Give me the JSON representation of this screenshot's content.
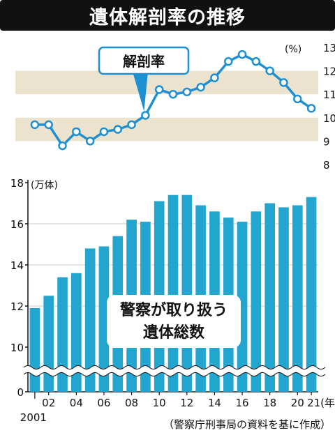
{
  "title": "遺体解剖率の推移",
  "source": "（警察庁刑事局の資料を基に作成）",
  "colors": {
    "line": "#1e8fd0",
    "bar": "#22a6cf",
    "band": "#ece3cf",
    "title_bg": "#111111",
    "label_border": "#1e8fd0"
  },
  "chart_data": [
    {
      "type": "line",
      "title": "",
      "series_label": "解剖率",
      "unit": "(%)",
      "x": [
        2001,
        2002,
        2003,
        2004,
        2005,
        2006,
        2007,
        2008,
        2009,
        2010,
        2011,
        2012,
        2013,
        2014,
        2015,
        2016,
        2017,
        2018,
        2019,
        2020,
        2021
      ],
      "values": [
        9.7,
        9.7,
        8.8,
        9.4,
        9.0,
        9.4,
        9.5,
        9.7,
        10.1,
        11.2,
        11.0,
        11.1,
        11.3,
        11.7,
        12.4,
        12.7,
        12.4,
        12.0,
        11.5,
        10.8,
        10.4
      ],
      "ylim": [
        8,
        13
      ],
      "yticks": [
        "8",
        "9",
        "10",
        "11",
        "12",
        "13"
      ],
      "banded_background": true
    },
    {
      "type": "bar",
      "title": "",
      "series_label": "警察が取り扱う\n遺体総数",
      "unit": "(万体)",
      "x": [
        2001,
        2002,
        2003,
        2004,
        2005,
        2006,
        2007,
        2008,
        2009,
        2010,
        2011,
        2012,
        2013,
        2014,
        2015,
        2016,
        2017,
        2018,
        2019,
        2020,
        2021
      ],
      "values": [
        11.9,
        12.5,
        13.4,
        13.6,
        14.8,
        14.9,
        15.4,
        16.2,
        16.1,
        17.1,
        17.4,
        17.4,
        16.9,
        16.6,
        16.3,
        16.1,
        16.6,
        17.0,
        16.8,
        16.9,
        17.3
      ],
      "ylim": [
        10,
        18
      ],
      "axis_break": true,
      "yticks": [
        "0",
        "10",
        "12",
        "14",
        "16",
        "18"
      ],
      "xtick_labels": [
        "2001",
        "02",
        "04",
        "06",
        "08",
        "10",
        "12",
        "14",
        "16",
        "18",
        "20",
        "21(年)"
      ]
    }
  ]
}
